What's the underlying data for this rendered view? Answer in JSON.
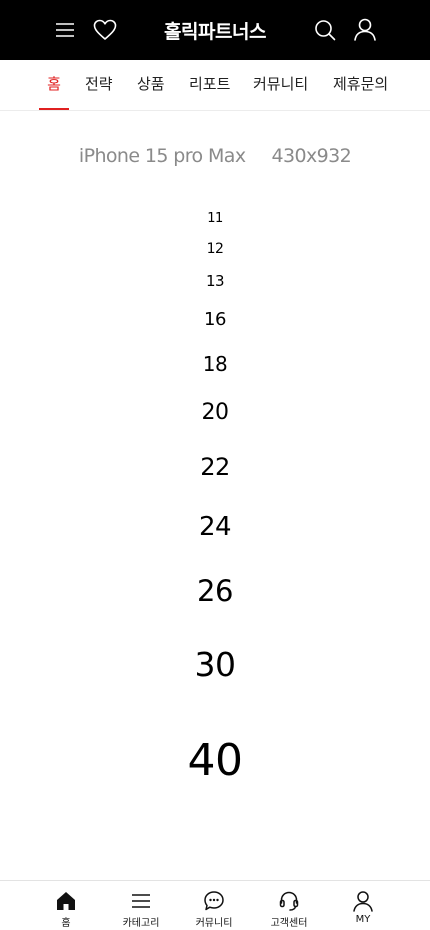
{
  "header": {
    "title": "홀릭파트너스",
    "icons": [
      "hamburger-menu-icon",
      "heart-icon",
      "search-icon",
      "user-icon"
    ],
    "background": "#000000"
  },
  "tabs": [
    {
      "label": "홈",
      "active": true
    },
    {
      "label": "전략",
      "active": false
    },
    {
      "label": "상품",
      "active": false
    },
    {
      "label": "리포트",
      "active": false
    },
    {
      "label": "커뮤니티",
      "active": false
    },
    {
      "label": "제휴문의",
      "active": false
    }
  ],
  "accent_color": "#e02020",
  "device": {
    "name": "iPhone 15 pro Max",
    "size": "430x932"
  },
  "font_sizes": [
    "11",
    "12",
    "13",
    "16",
    "18",
    "20",
    "22",
    "24",
    "26",
    "30",
    "40"
  ],
  "bottom_nav": [
    {
      "label": "홈",
      "icon": "home-icon"
    },
    {
      "label": "카테고리",
      "icon": "category-menu-icon"
    },
    {
      "label": "커뮤니티",
      "icon": "chat-bubble-icon"
    },
    {
      "label": "고객센터",
      "icon": "headset-icon"
    },
    {
      "label": "MY",
      "icon": "user-icon"
    }
  ]
}
